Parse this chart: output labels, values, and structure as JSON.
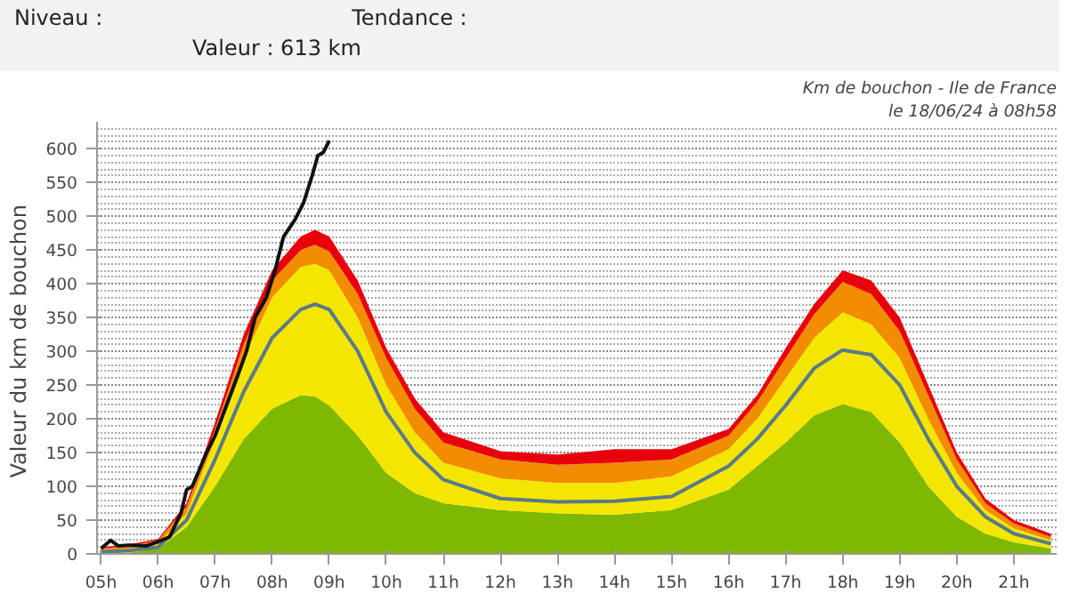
{
  "chart_data": {
    "type": "area",
    "title": "Km de bouchon - Ile de France",
    "subtitle": "le 18/06/24 à 08h58",
    "ylabel": "Valeur du  km de bouchon",
    "annotations": [
      "Niveau :",
      "Tendance :",
      "Valeur : 613 km"
    ],
    "stacked": true,
    "x": [
      5,
      5.5,
      6,
      6.5,
      7,
      7.5,
      8,
      8.5,
      8.75,
      9,
      9.5,
      10,
      10.5,
      11,
      12,
      13,
      14,
      15,
      16,
      16.5,
      17,
      17.5,
      18,
      18.5,
      19,
      19.5,
      20,
      20.5,
      21,
      21.65
    ],
    "series": [
      {
        "color": "#7fb800",
        "values": [
          0,
          2,
          8,
          40,
          100,
          170,
          215,
          235,
          233,
          220,
          175,
          120,
          90,
          75,
          65,
          60,
          58,
          65,
          95,
          130,
          165,
          205,
          222,
          210,
          165,
          100,
          55,
          30,
          17,
          8
        ]
      },
      {
        "color": "#f5e600",
        "values": [
          5,
          6,
          7,
          20,
          70,
          120,
          165,
          190,
          197,
          200,
          175,
          130,
          90,
          60,
          47,
          45,
          47,
          50,
          60,
          70,
          95,
          115,
          136,
          130,
          125,
          100,
          65,
          35,
          21,
          12
        ]
      },
      {
        "color": "#f28c00",
        "values": [
          3,
          4,
          5,
          10,
          15,
          20,
          25,
          25,
          28,
          28,
          35,
          40,
          35,
          30,
          28,
          27,
          30,
          25,
          20,
          25,
          30,
          35,
          45,
          45,
          40,
          35,
          20,
          10,
          7,
          5
        ]
      },
      {
        "color": "#e8000b",
        "values": [
          2,
          2,
          2,
          5,
          10,
          15,
          15,
          20,
          22,
          22,
          20,
          15,
          15,
          15,
          12,
          15,
          20,
          15,
          10,
          10,
          15,
          15,
          17,
          20,
          20,
          15,
          10,
          7,
          5,
          5
        ]
      },
      {
        "type": "line",
        "color": "#5a7a8a",
        "values": [
          3,
          5,
          10,
          50,
          140,
          240,
          320,
          362,
          370,
          362,
          300,
          210,
          150,
          110,
          82,
          77,
          78,
          85,
          130,
          170,
          220,
          275,
          302,
          295,
          250,
          170,
          100,
          55,
          30,
          15
        ]
      },
      {
        "type": "line",
        "color": "#111111",
        "x": [
          5,
          5.17,
          5.3,
          5.5,
          5.8,
          6,
          6.2,
          6.4,
          6.5,
          6.6,
          6.7,
          6.85,
          7,
          7.2,
          7.4,
          7.55,
          7.7,
          7.9,
          8.05,
          8.2,
          8.4,
          8.55,
          8.7,
          8.8,
          8.9,
          9.0
        ],
        "values": [
          8,
          20,
          12,
          13,
          12,
          18,
          25,
          60,
          95,
          100,
          120,
          150,
          175,
          220,
          265,
          300,
          350,
          380,
          420,
          470,
          495,
          520,
          560,
          590,
          595,
          612
        ]
      }
    ],
    "xlim": [
      4.93,
      21.75
    ],
    "ylim": [
      0,
      640
    ],
    "xticks": [
      {
        "value": 5,
        "label": "05h"
      },
      {
        "value": 6,
        "label": "06h"
      },
      {
        "value": 7,
        "label": "07h"
      },
      {
        "value": 8,
        "label": "08h"
      },
      {
        "value": 9,
        "label": "09h"
      },
      {
        "value": 10,
        "label": "10h"
      },
      {
        "value": 11,
        "label": "11h"
      },
      {
        "value": 12,
        "label": "12h"
      },
      {
        "value": 13,
        "label": "13h"
      },
      {
        "value": 14,
        "label": "14h"
      },
      {
        "value": 15,
        "label": "15h"
      },
      {
        "value": 16,
        "label": "16h"
      },
      {
        "value": 17,
        "label": "17h"
      },
      {
        "value": 18,
        "label": "18h"
      },
      {
        "value": 19,
        "label": "19h"
      },
      {
        "value": 20,
        "label": "20h"
      },
      {
        "value": 21,
        "label": "21h"
      }
    ],
    "yticks": [
      0,
      50,
      100,
      150,
      200,
      250,
      300,
      350,
      400,
      450,
      500,
      550,
      600
    ],
    "grid": "y"
  }
}
